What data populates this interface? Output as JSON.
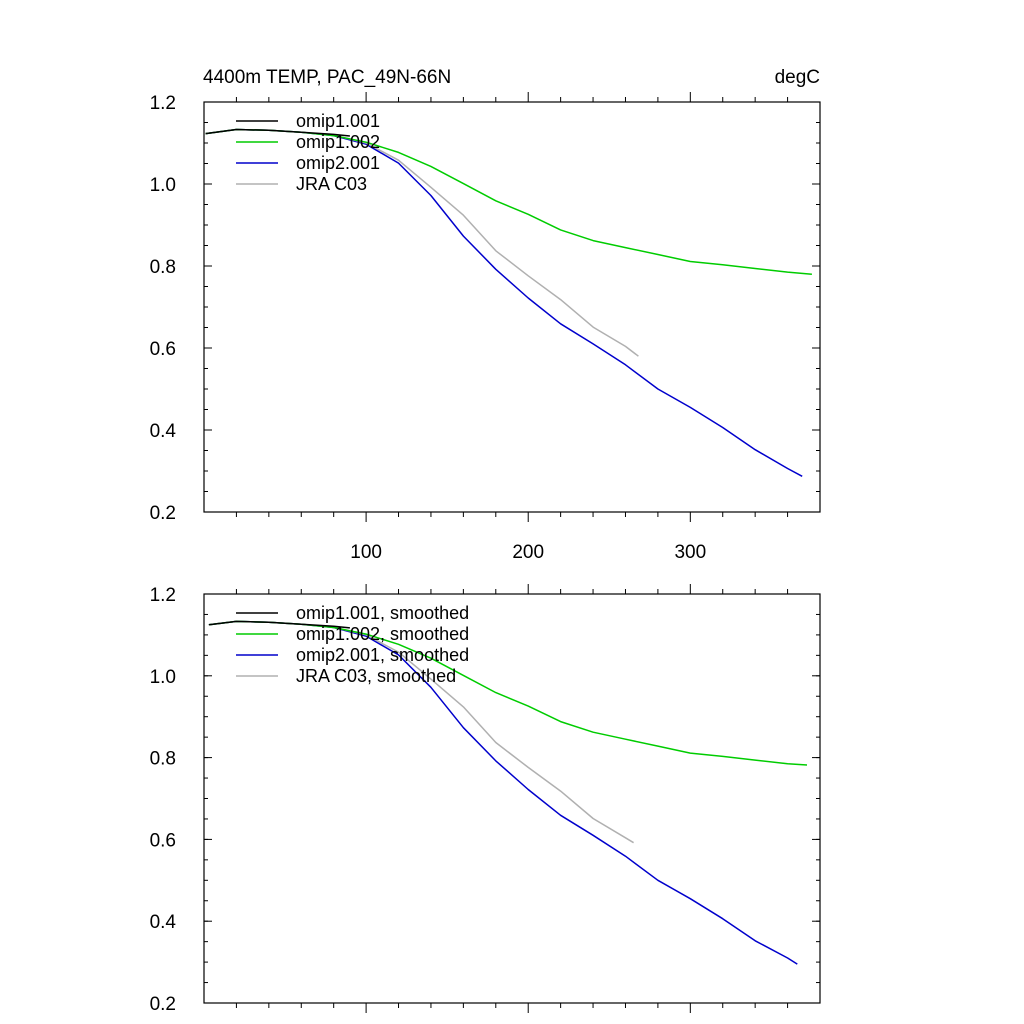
{
  "header": {
    "title": "4400m TEMP, PAC_49N-66N",
    "units": "degC"
  },
  "chart_data": [
    {
      "type": "line",
      "title": "4400m TEMP, PAC_49N-66N",
      "units": "degC",
      "xlim": [
        0,
        380
      ],
      "ylim": [
        0.2,
        1.2
      ],
      "x_ticks": [
        100,
        200,
        300
      ],
      "x_tick_labels": [
        "100",
        "200",
        "300"
      ],
      "y_ticks": [
        0.2,
        0.4,
        0.6,
        0.8,
        1.0,
        1.2
      ],
      "y_tick_labels": [
        "0.2",
        "0.4",
        "0.6",
        "0.8",
        "1.0",
        "1.2"
      ],
      "legend_position": "top-left",
      "series": [
        {
          "name": "omip1.001",
          "color": "#000000",
          "x": [
            1,
            20,
            40,
            60,
            80,
            90
          ],
          "values": [
            1.123,
            1.133,
            1.131,
            1.126,
            1.121,
            1.117
          ]
        },
        {
          "name": "omip1.002",
          "color": "#00cc00",
          "x": [
            1,
            20,
            40,
            60,
            80,
            100,
            120,
            140,
            160,
            180,
            200,
            220,
            240,
            260,
            280,
            300,
            320,
            340,
            360,
            375
          ],
          "values": [
            1.123,
            1.133,
            1.131,
            1.126,
            1.118,
            1.102,
            1.077,
            1.043,
            1.001,
            0.959,
            0.926,
            0.888,
            0.862,
            0.845,
            0.828,
            0.811,
            0.803,
            0.794,
            0.785,
            0.78
          ]
        },
        {
          "name": "omip2.001",
          "color": "#0000cc",
          "x": [
            1,
            20,
            40,
            60,
            80,
            100,
            120,
            140,
            160,
            180,
            200,
            220,
            240,
            260,
            280,
            300,
            320,
            340,
            360,
            369
          ],
          "values": [
            1.123,
            1.133,
            1.131,
            1.126,
            1.118,
            1.097,
            1.051,
            0.972,
            0.873,
            0.792,
            0.722,
            0.659,
            0.61,
            0.559,
            0.5,
            0.455,
            0.406,
            0.352,
            0.306,
            0.287
          ]
        },
        {
          "name": "JRA C03",
          "color": "#b0b0b0",
          "x": [
            1,
            20,
            40,
            60,
            80,
            100,
            120,
            140,
            160,
            180,
            200,
            220,
            240,
            260,
            268
          ],
          "values": [
            1.123,
            1.133,
            1.131,
            1.126,
            1.119,
            1.1,
            1.058,
            0.992,
            0.924,
            0.837,
            0.776,
            0.718,
            0.651,
            0.604,
            0.58
          ]
        }
      ]
    },
    {
      "type": "line",
      "xlim": [
        0,
        380
      ],
      "ylim": [
        0.2,
        1.2
      ],
      "x_ticks": [
        100,
        200,
        300
      ],
      "x_tick_labels": [],
      "y_ticks": [
        0.2,
        0.4,
        0.6,
        0.8,
        1.0,
        1.2
      ],
      "y_tick_labels": [
        "0.2",
        "0.4",
        "0.6",
        "0.8",
        "1.0",
        "1.2"
      ],
      "legend_position": "top-left",
      "series": [
        {
          "name": "omip1.001, smoothed",
          "color": "#000000",
          "x": [
            3,
            20,
            40,
            60,
            80,
            90
          ],
          "values": [
            1.125,
            1.133,
            1.131,
            1.126,
            1.121,
            1.117
          ]
        },
        {
          "name": "omip1.002, smoothed",
          "color": "#00cc00",
          "x": [
            3,
            20,
            40,
            60,
            80,
            100,
            120,
            140,
            160,
            180,
            200,
            220,
            240,
            260,
            280,
            300,
            320,
            340,
            360,
            372
          ],
          "values": [
            1.125,
            1.133,
            1.131,
            1.126,
            1.118,
            1.102,
            1.077,
            1.043,
            1.001,
            0.959,
            0.926,
            0.888,
            0.862,
            0.845,
            0.828,
            0.811,
            0.803,
            0.794,
            0.785,
            0.782
          ]
        },
        {
          "name": "omip2.001, smoothed",
          "color": "#0000cc",
          "x": [
            3,
            20,
            40,
            60,
            80,
            100,
            120,
            140,
            160,
            180,
            200,
            220,
            240,
            260,
            280,
            300,
            320,
            340,
            360,
            366
          ],
          "values": [
            1.125,
            1.133,
            1.131,
            1.126,
            1.118,
            1.097,
            1.051,
            0.972,
            0.873,
            0.792,
            0.722,
            0.659,
            0.61,
            0.559,
            0.5,
            0.455,
            0.406,
            0.352,
            0.31,
            0.295
          ]
        },
        {
          "name": "JRA C03, smoothed",
          "color": "#b0b0b0",
          "x": [
            3,
            20,
            40,
            60,
            80,
            100,
            120,
            140,
            160,
            180,
            200,
            220,
            240,
            260,
            265
          ],
          "values": [
            1.125,
            1.133,
            1.131,
            1.126,
            1.119,
            1.1,
            1.058,
            0.992,
            0.924,
            0.837,
            0.776,
            0.718,
            0.651,
            0.604,
            0.592
          ]
        }
      ]
    }
  ]
}
